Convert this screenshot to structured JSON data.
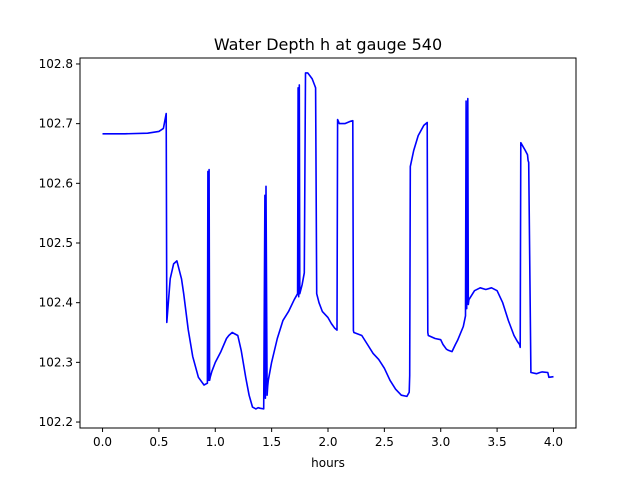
{
  "chart_data": {
    "type": "line",
    "title": "Water Depth h at gauge 540",
    "xlabel": "hours",
    "ylabel": "",
    "xlim": [
      -0.2,
      4.2
    ],
    "ylim": [
      102.19,
      102.81
    ],
    "xticks": [
      0.0,
      0.5,
      1.0,
      1.5,
      2.0,
      2.5,
      3.0,
      3.5,
      4.0
    ],
    "xtick_labels": [
      "0.0",
      "0.5",
      "1.0",
      "1.5",
      "2.0",
      "2.5",
      "3.0",
      "3.5",
      "4.0"
    ],
    "yticks": [
      102.2,
      102.3,
      102.4,
      102.5,
      102.6,
      102.7,
      102.8
    ],
    "ytick_labels": [
      "102.2",
      "102.3",
      "102.4",
      "102.5",
      "102.6",
      "102.7",
      "102.8"
    ],
    "grid": false,
    "series": [
      {
        "color": "#0000ff",
        "x": [
          0.0,
          0.2,
          0.4,
          0.5,
          0.54,
          0.565,
          0.57,
          0.6,
          0.63,
          0.66,
          0.7,
          0.72,
          0.76,
          0.8,
          0.85,
          0.9,
          0.93,
          0.935,
          0.94,
          0.945,
          0.95,
          0.955,
          0.97,
          1.0,
          1.05,
          1.1,
          1.12,
          1.15,
          1.2,
          1.23,
          1.27,
          1.3,
          1.33,
          1.36,
          1.38,
          1.4,
          1.43,
          1.44,
          1.445,
          1.45,
          1.46,
          1.465,
          1.47,
          1.5,
          1.55,
          1.6,
          1.65,
          1.7,
          1.73,
          1.735,
          1.74,
          1.745,
          1.75,
          1.77,
          1.79,
          1.8,
          1.82,
          1.84,
          1.86,
          1.88,
          1.89,
          1.9,
          1.92,
          1.95,
          2.0,
          2.03,
          2.06,
          2.08,
          2.085,
          2.09,
          2.1,
          2.15,
          2.2,
          2.22,
          2.225,
          2.23,
          2.3,
          2.35,
          2.4,
          2.45,
          2.5,
          2.55,
          2.6,
          2.65,
          2.7,
          2.72,
          2.725,
          2.73,
          2.76,
          2.8,
          2.85,
          2.88,
          2.885,
          2.89,
          2.95,
          3.0,
          3.02,
          3.05,
          3.07,
          3.1,
          3.13,
          3.15,
          3.2,
          3.22,
          3.225,
          3.23,
          3.24,
          3.245,
          3.25,
          3.3,
          3.35,
          3.4,
          3.45,
          3.5,
          3.55,
          3.6,
          3.65,
          3.68,
          3.7,
          3.705,
          3.71,
          3.75,
          3.77,
          3.775,
          3.78,
          3.8,
          3.85,
          3.88,
          3.9,
          3.95,
          3.96,
          4.0
        ],
        "y": [
          102.683,
          102.683,
          102.684,
          102.687,
          102.692,
          102.717,
          102.367,
          102.44,
          102.465,
          102.47,
          102.44,
          102.415,
          102.355,
          102.31,
          102.275,
          102.262,
          102.265,
          102.62,
          102.27,
          102.623,
          102.27,
          102.275,
          102.285,
          102.3,
          102.318,
          102.34,
          102.345,
          102.35,
          102.345,
          102.32,
          102.275,
          102.245,
          102.225,
          102.222,
          102.224,
          102.223,
          102.222,
          102.58,
          102.24,
          102.595,
          102.245,
          102.26,
          102.27,
          102.3,
          102.34,
          102.37,
          102.385,
          102.405,
          102.415,
          102.76,
          102.41,
          102.765,
          102.415,
          102.43,
          102.45,
          102.785,
          102.785,
          102.78,
          102.775,
          102.765,
          102.76,
          102.415,
          102.4,
          102.385,
          102.375,
          102.365,
          102.357,
          102.354,
          102.707,
          102.705,
          102.7,
          102.7,
          102.704,
          102.705,
          102.353,
          102.35,
          102.345,
          102.33,
          102.315,
          102.305,
          102.29,
          102.27,
          102.255,
          102.245,
          102.243,
          102.25,
          102.278,
          102.628,
          102.655,
          102.68,
          102.697,
          102.702,
          102.35,
          102.345,
          102.34,
          102.338,
          102.33,
          102.322,
          102.32,
          102.318,
          102.33,
          102.337,
          102.36,
          102.378,
          102.738,
          102.39,
          102.742,
          102.397,
          102.405,
          102.42,
          102.425,
          102.422,
          102.425,
          102.42,
          102.4,
          102.37,
          102.345,
          102.335,
          102.33,
          102.325,
          102.668,
          102.655,
          102.648,
          102.638,
          102.635,
          102.283,
          102.281,
          102.283,
          102.284,
          102.283,
          102.275,
          102.276
        ]
      }
    ]
  }
}
